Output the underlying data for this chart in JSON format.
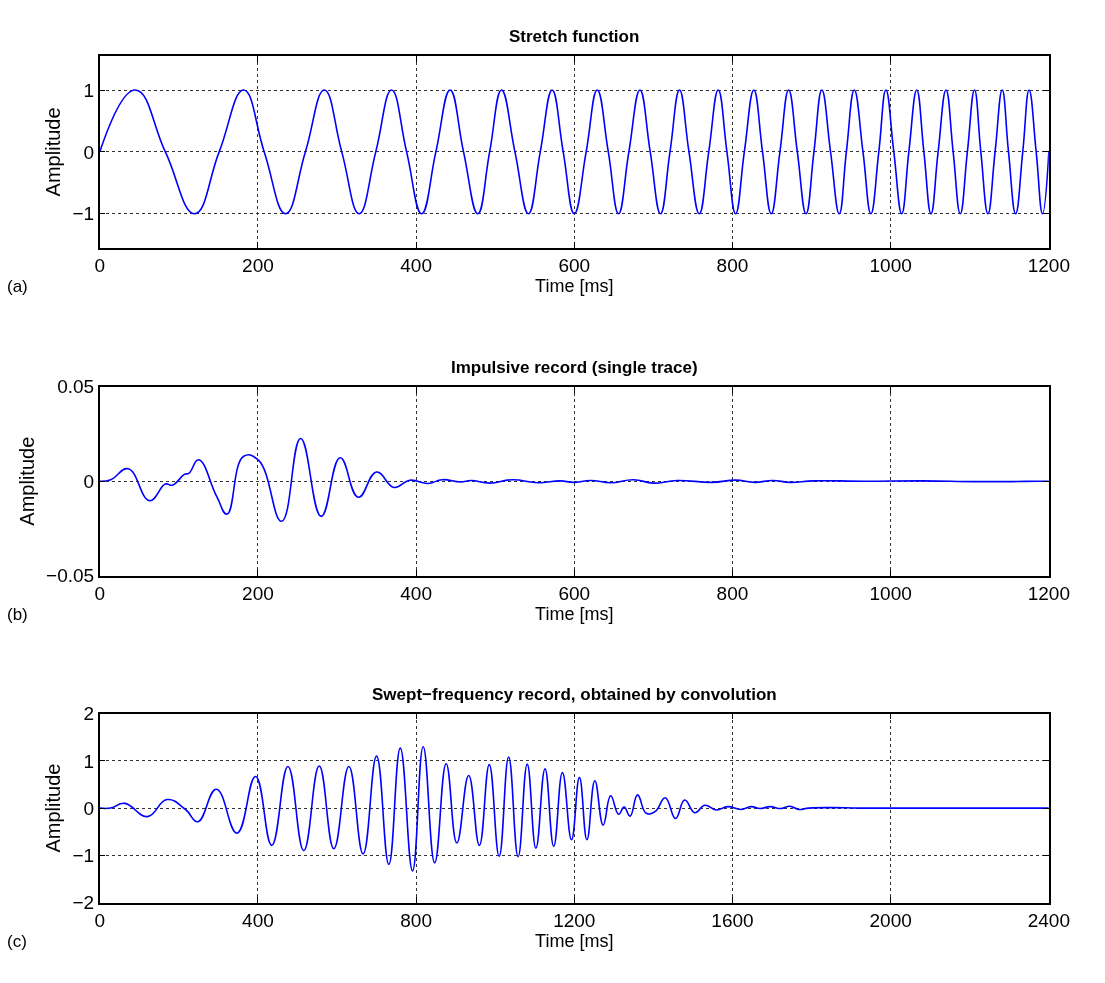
{
  "chart_data": [
    {
      "type": "line",
      "title": "Stretch function",
      "xlabel": "Time [ms]",
      "ylabel": "Amplitude",
      "annotations": [
        "(a)"
      ],
      "grid": true,
      "marker": "none",
      "line_style": "solid",
      "xlim": [
        0,
        1200
      ],
      "xticks": [
        0,
        200,
        400,
        600,
        800,
        1000,
        1200
      ],
      "ylim": [
        -1.55,
        1.55
      ],
      "yticks": [
        {
          "value": -1,
          "label": "−1"
        },
        0,
        1
      ],
      "series": [
        {
          "color": "#0000ff",
          "x": [
            0,
            45,
            83,
            120,
            151,
            182,
            208,
            235,
            260,
            284,
            306,
            328,
            349,
            369,
            388,
            407,
            425,
            443,
            460,
            478,
            493,
            508,
            525,
            542,
            557,
            572,
            586,
            600,
            615,
            629,
            643,
            656,
            669,
            683,
            696,
            709,
            721,
            733,
            745,
            758,
            770,
            782,
            793,
            804,
            815,
            827,
            838,
            849,
            860,
            871,
            882,
            893,
            903,
            913,
            924,
            935,
            944,
            954,
            965,
            975,
            985,
            994,
            1004,
            1014,
            1023,
            1033,
            1042,
            1051,
            1060,
            1070,
            1079,
            1088,
            1097,
            1106,
            1114,
            1123,
            1132,
            1141,
            1149,
            1158,
            1167,
            1175,
            1184,
            1192,
            1200
          ],
          "values": [
            0,
            1,
            0,
            -1,
            0,
            1,
            0,
            -1,
            0,
            1,
            0,
            -1,
            0,
            1,
            0,
            -1,
            0,
            1,
            0,
            -1,
            0,
            1,
            0,
            -1,
            0,
            1,
            0,
            -1,
            0,
            1,
            0,
            -1,
            0,
            1,
            0,
            -1,
            0,
            1,
            0,
            -1,
            0,
            1,
            0,
            -1,
            0,
            1,
            0,
            -1,
            0,
            1,
            0,
            -1,
            0,
            1,
            0,
            -1,
            0,
            1,
            0,
            -1,
            0,
            1,
            0,
            -1,
            0,
            1,
            0,
            -1,
            0,
            1,
            0,
            -1,
            0,
            1,
            0,
            -1,
            0,
            1,
            0,
            -1,
            0,
            1,
            0,
            -1,
            0
          ]
        }
      ]
    },
    {
      "type": "line",
      "title": "Impulsive record (single trace)",
      "xlabel": "Time [ms]",
      "ylabel": "Amplitude",
      "annotations": [
        "(b)"
      ],
      "grid": true,
      "marker": "none",
      "line_style": "solid",
      "xlim": [
        0,
        1200
      ],
      "xticks": [
        0,
        200,
        400,
        600,
        800,
        1000,
        1200
      ],
      "ylim": [
        -0.05,
        0.05
      ],
      "yticks": [
        {
          "value": -0.05,
          "label": "−0.05"
        },
        0,
        0.05
      ],
      "series": [
        {
          "color": "#0000ff",
          "x": [
            0,
            14,
            36,
            63,
            83,
            92,
            107,
            113,
            125,
            148,
            161,
            182,
            201,
            230,
            254,
            280,
            304,
            327,
            350,
            372,
            392,
            415,
            433,
            456,
            470,
            493,
            522,
            554,
            582,
            599,
            621,
            646,
            675,
            700,
            730,
            774,
            804,
            828,
            851,
            873,
            903,
            967,
            1041,
            1105,
            1154,
            1184,
            1200
          ],
          "values": [
            0,
            0.0008,
            0.0066,
            -0.0103,
            -0.0015,
            -0.0021,
            0.0036,
            0.0043,
            0.0114,
            -0.0082,
            -0.0174,
            0.0132,
            0.011,
            -0.0212,
            0.0226,
            -0.0186,
            0.0124,
            -0.0085,
            0.0049,
            -0.0033,
            0.0005,
            -0.0012,
            0.0008,
            -0.0004,
            0.0004,
            -0.001,
            0.0008,
            -0.0008,
            0.0002,
            -0.0006,
            0.0004,
            -0.0008,
            0.0008,
            -0.001,
            0.0004,
            -0.0006,
            0.0006,
            -0.0006,
            0.0004,
            -0.0006,
            0.0002,
            0,
            0.0002,
            -0.0002,
            -0.0002,
            0,
            0
          ]
        }
      ]
    },
    {
      "type": "line",
      "title": "Swept−frequency record, obtained by convolution",
      "xlabel": "Time [ms]",
      "ylabel": "Amplitude",
      "annotations": [
        "(c)"
      ],
      "grid": true,
      "marker": "none",
      "line_style": "solid",
      "xlim": [
        0,
        2400
      ],
      "xticks": [
        0,
        400,
        800,
        1200,
        1600,
        2000,
        2400
      ],
      "ylim": [
        -2,
        2
      ],
      "yticks": [
        {
          "value": -2,
          "label": "−2"
        },
        {
          "value": -1,
          "label": "−1"
        },
        0,
        1,
        2
      ],
      "series": [
        {
          "color": "#0000ff",
          "x": [
            0,
            28,
            63,
            121,
            170,
            217,
            248,
            295,
            347,
            394,
            435,
            476,
            516,
            555,
            592,
            630,
            666,
            700,
            731,
            760,
            791,
            818,
            847,
            876,
            903,
            933,
            960,
            985,
            1010,
            1034,
            1058,
            1081,
            1103,
            1126,
            1148,
            1170,
            1193,
            1213,
            1232,
            1252,
            1273,
            1292,
            1312,
            1326,
            1341,
            1360,
            1382,
            1405,
            1430,
            1456,
            1479,
            1505,
            1530,
            1559,
            1588,
            1622,
            1647,
            1670,
            1695,
            1723,
            1745,
            1768,
            1793,
            1859,
            1924,
            2400
          ],
          "values": [
            0,
            0,
            0.1,
            -0.18,
            0.18,
            -0.03,
            -0.29,
            0.4,
            -0.53,
            0.67,
            -0.79,
            0.88,
            -0.9,
            0.89,
            -0.86,
            0.88,
            -0.97,
            1.1,
            -1.19,
            1.27,
            -1.33,
            1.3,
            -1.16,
            0.94,
            -0.74,
            0.69,
            -0.79,
            0.92,
            -1.02,
            1.08,
            -1.03,
            0.93,
            -0.85,
            0.83,
            -0.81,
            0.75,
            -0.67,
            0.65,
            -0.67,
            0.58,
            -0.36,
            0.26,
            -0.13,
            0.02,
            -0.17,
            0.28,
            -0.11,
            -0.07,
            0.22,
            -0.22,
            0.17,
            -0.1,
            0.06,
            -0.04,
            0.03,
            -0.03,
            0.03,
            -0.01,
            0.03,
            -0.01,
            0.04,
            -0.03,
            0,
            0.01,
            0,
            0
          ]
        }
      ]
    }
  ]
}
